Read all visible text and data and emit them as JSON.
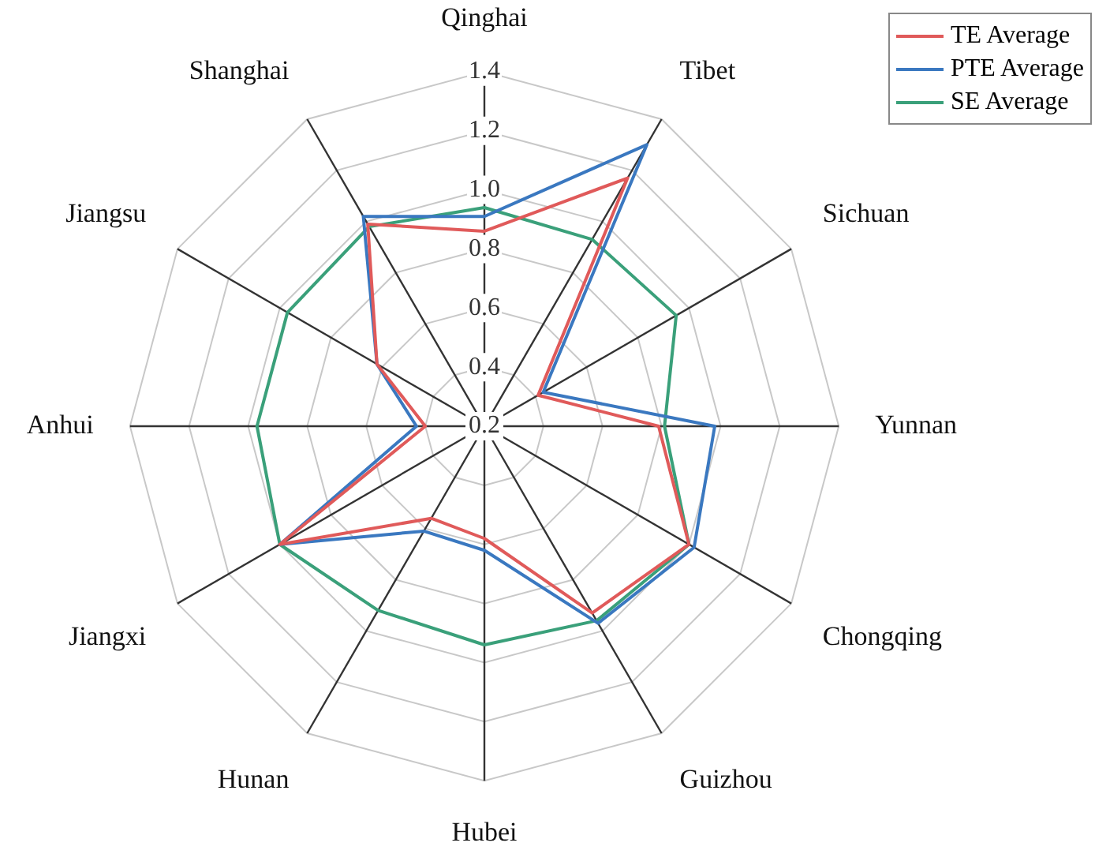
{
  "chart_data": {
    "type": "radar",
    "categories": [
      "Qinghai",
      "Tibet",
      "Sichuan",
      "Yunnan",
      "Chongqing",
      "Guizhou",
      "Hubei",
      "Hunan",
      "Jiangxi",
      "Anhui",
      "Jiangsu",
      "Shanghai"
    ],
    "series": [
      {
        "name": "TE Average",
        "color": "#e05a5a",
        "values": [
          0.86,
          1.17,
          0.41,
          0.79,
          1.0,
          0.93,
          0.58,
          0.56,
          1.0,
          0.4,
          0.62,
          0.99
        ]
      },
      {
        "name": "PTE Average",
        "color": "#3a78c0",
        "values": [
          0.91,
          1.3,
          0.43,
          0.98,
          1.02,
          0.97,
          0.62,
          0.61,
          1.0,
          0.43,
          0.62,
          1.02
        ]
      },
      {
        "name": "SE Average",
        "color": "#3aa07a",
        "values": [
          0.94,
          0.93,
          0.95,
          0.81,
          1.0,
          0.96,
          0.94,
          0.92,
          1.0,
          0.97,
          0.97,
          0.98
        ]
      }
    ],
    "ylim": [
      0.2,
      1.4
    ],
    "yticks": [
      0.2,
      0.4,
      0.6,
      0.8,
      {
        "value": 1,
        "label": "1.0"
      },
      1.2,
      1.4
    ],
    "legend": "top right",
    "marker": "none",
    "grid": true
  }
}
